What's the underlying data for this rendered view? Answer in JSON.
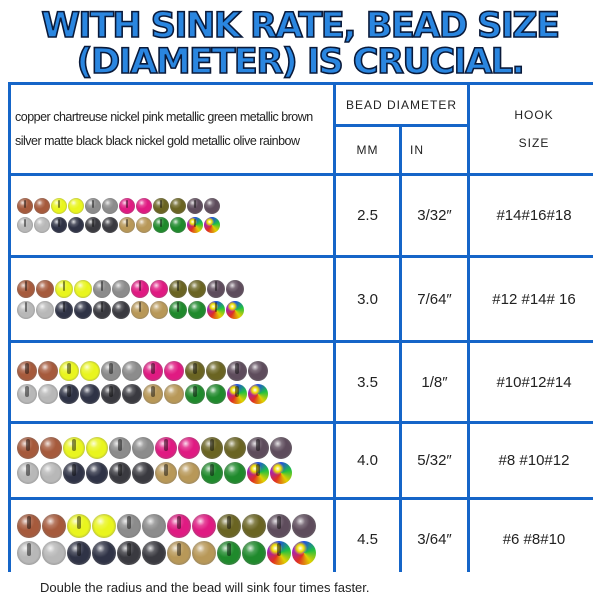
{
  "title": {
    "line1": "WITH SINK RATE, BEAD SIZE",
    "line2": "(DIAMETER) IS CRUCIAL."
  },
  "header": {
    "colors_line1": "copper chartreuse nickel pink metallic green metallic brown",
    "colors_line2": "silver matte black black nickel gold metallic olive rainbow",
    "bead_diameter": "BEAD DIAMETER",
    "mm": "MM",
    "in": "IN",
    "hook_line1": "HOOK",
    "hook_line2": "SIZE"
  },
  "bead_colors": {
    "top": [
      "#a65a3c",
      "#e9f51e",
      "#8c8c8c",
      "#e01a82",
      "#6a6422",
      "#5e4c5c"
    ],
    "bottom": [
      "#b8b8b8",
      "#2f3346",
      "#3a3a40",
      "#b89858",
      "#1f8a2c",
      "rainbow"
    ]
  },
  "rows": [
    {
      "mm": "2.5",
      "in": "3/32″",
      "hook": "#14#16#18"
    },
    {
      "mm": "3.0",
      "in": "7/64″",
      "hook": "#12 #14# 16"
    },
    {
      "mm": "3.5",
      "in": "1/8″",
      "hook": "#10#12#14"
    },
    {
      "mm": "4.0",
      "in": "5/32″",
      "hook": "#8 #10#12"
    },
    {
      "mm": "4.5",
      "in": "3/64″",
      "hook": "#6 #8#10"
    }
  ],
  "footer": "Double the radius and the bead will sink four times faster."
}
